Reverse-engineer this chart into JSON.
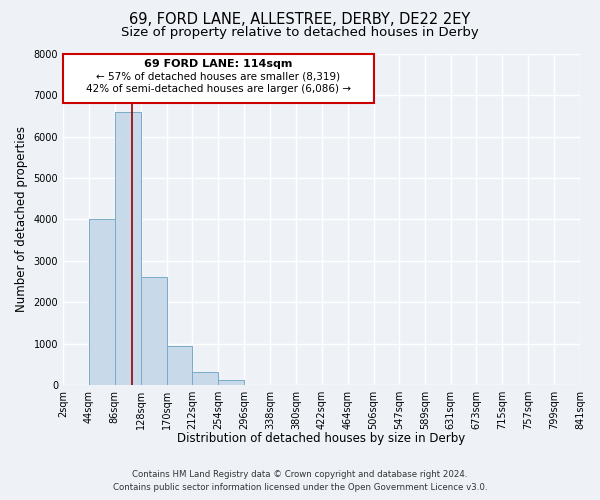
{
  "title": "69, FORD LANE, ALLESTREE, DERBY, DE22 2EY",
  "subtitle": "Size of property relative to detached houses in Derby",
  "xlabel": "Distribution of detached houses by size in Derby",
  "ylabel": "Number of detached properties",
  "bin_edges": [
    2,
    44,
    86,
    128,
    170,
    212,
    254,
    296,
    338,
    380,
    422,
    464,
    506,
    547,
    589,
    631,
    673,
    715,
    757,
    799,
    841
  ],
  "bar_heights": [
    0,
    4000,
    6600,
    2600,
    950,
    320,
    120,
    0,
    0,
    0,
    0,
    0,
    0,
    0,
    0,
    0,
    0,
    0,
    0,
    0
  ],
  "bar_color": "#c8d9ea",
  "bar_edge_color": "#7aabc8",
  "property_size": 114,
  "vline_color": "#990000",
  "annotation_box_edge_color": "#cc0000",
  "annotation_line1": "69 FORD LANE: 114sqm",
  "annotation_line2": "← 57% of detached houses are smaller (8,319)",
  "annotation_line3": "42% of semi-detached houses are larger (6,086) →",
  "ylim": [
    0,
    8000
  ],
  "yticks": [
    0,
    1000,
    2000,
    3000,
    4000,
    5000,
    6000,
    7000,
    8000
  ],
  "tick_labels": [
    "2sqm",
    "44sqm",
    "86sqm",
    "128sqm",
    "170sqm",
    "212sqm",
    "254sqm",
    "296sqm",
    "338sqm",
    "380sqm",
    "422sqm",
    "464sqm",
    "506sqm",
    "547sqm",
    "589sqm",
    "631sqm",
    "673sqm",
    "715sqm",
    "757sqm",
    "799sqm",
    "841sqm"
  ],
  "footer_line1": "Contains HM Land Registry data © Crown copyright and database right 2024.",
  "footer_line2": "Contains public sector information licensed under the Open Government Licence v3.0.",
  "background_color": "#eef2f7",
  "plot_background_color": "#eef2f7",
  "grid_color": "#ffffff",
  "title_fontsize": 10.5,
  "subtitle_fontsize": 9.5,
  "axis_label_fontsize": 8.5,
  "tick_fontsize": 7
}
